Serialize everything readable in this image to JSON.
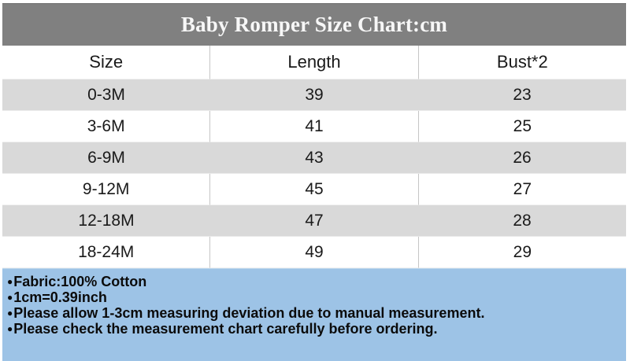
{
  "title": "Baby Romper Size Chart:cm",
  "table": {
    "columns": [
      "Size",
      "Length",
      "Bust*2"
    ],
    "rows": [
      {
        "size": "0-3M",
        "length": "39",
        "bust": "23"
      },
      {
        "size": "3-6M",
        "length": "41",
        "bust": "25"
      },
      {
        "size": "6-9M",
        "length": "43",
        "bust": "26"
      },
      {
        "size": "9-12M",
        "length": "45",
        "bust": "27"
      },
      {
        "size": "12-18M",
        "length": "47",
        "bust": "28"
      },
      {
        "size": "18-24M",
        "length": "49",
        "bust": "29"
      }
    ]
  },
  "notes": {
    "bullet": "●",
    "items": [
      "Fabric:100% Cotton",
      "1cm=0.39inch",
      "Please allow 1-3cm measuring deviation due to manual measurement.",
      "Please check the measurement chart carefully before ordering."
    ]
  },
  "colors": {
    "title_bg": "#808080",
    "title_text": "#f7f7f7",
    "row_alt_bg": "#d9d9d9",
    "row_bg": "#ffffff",
    "notes_bg": "#9dc3e6",
    "grid_line": "#c6c6c6",
    "text": "#1a1a1a"
  }
}
